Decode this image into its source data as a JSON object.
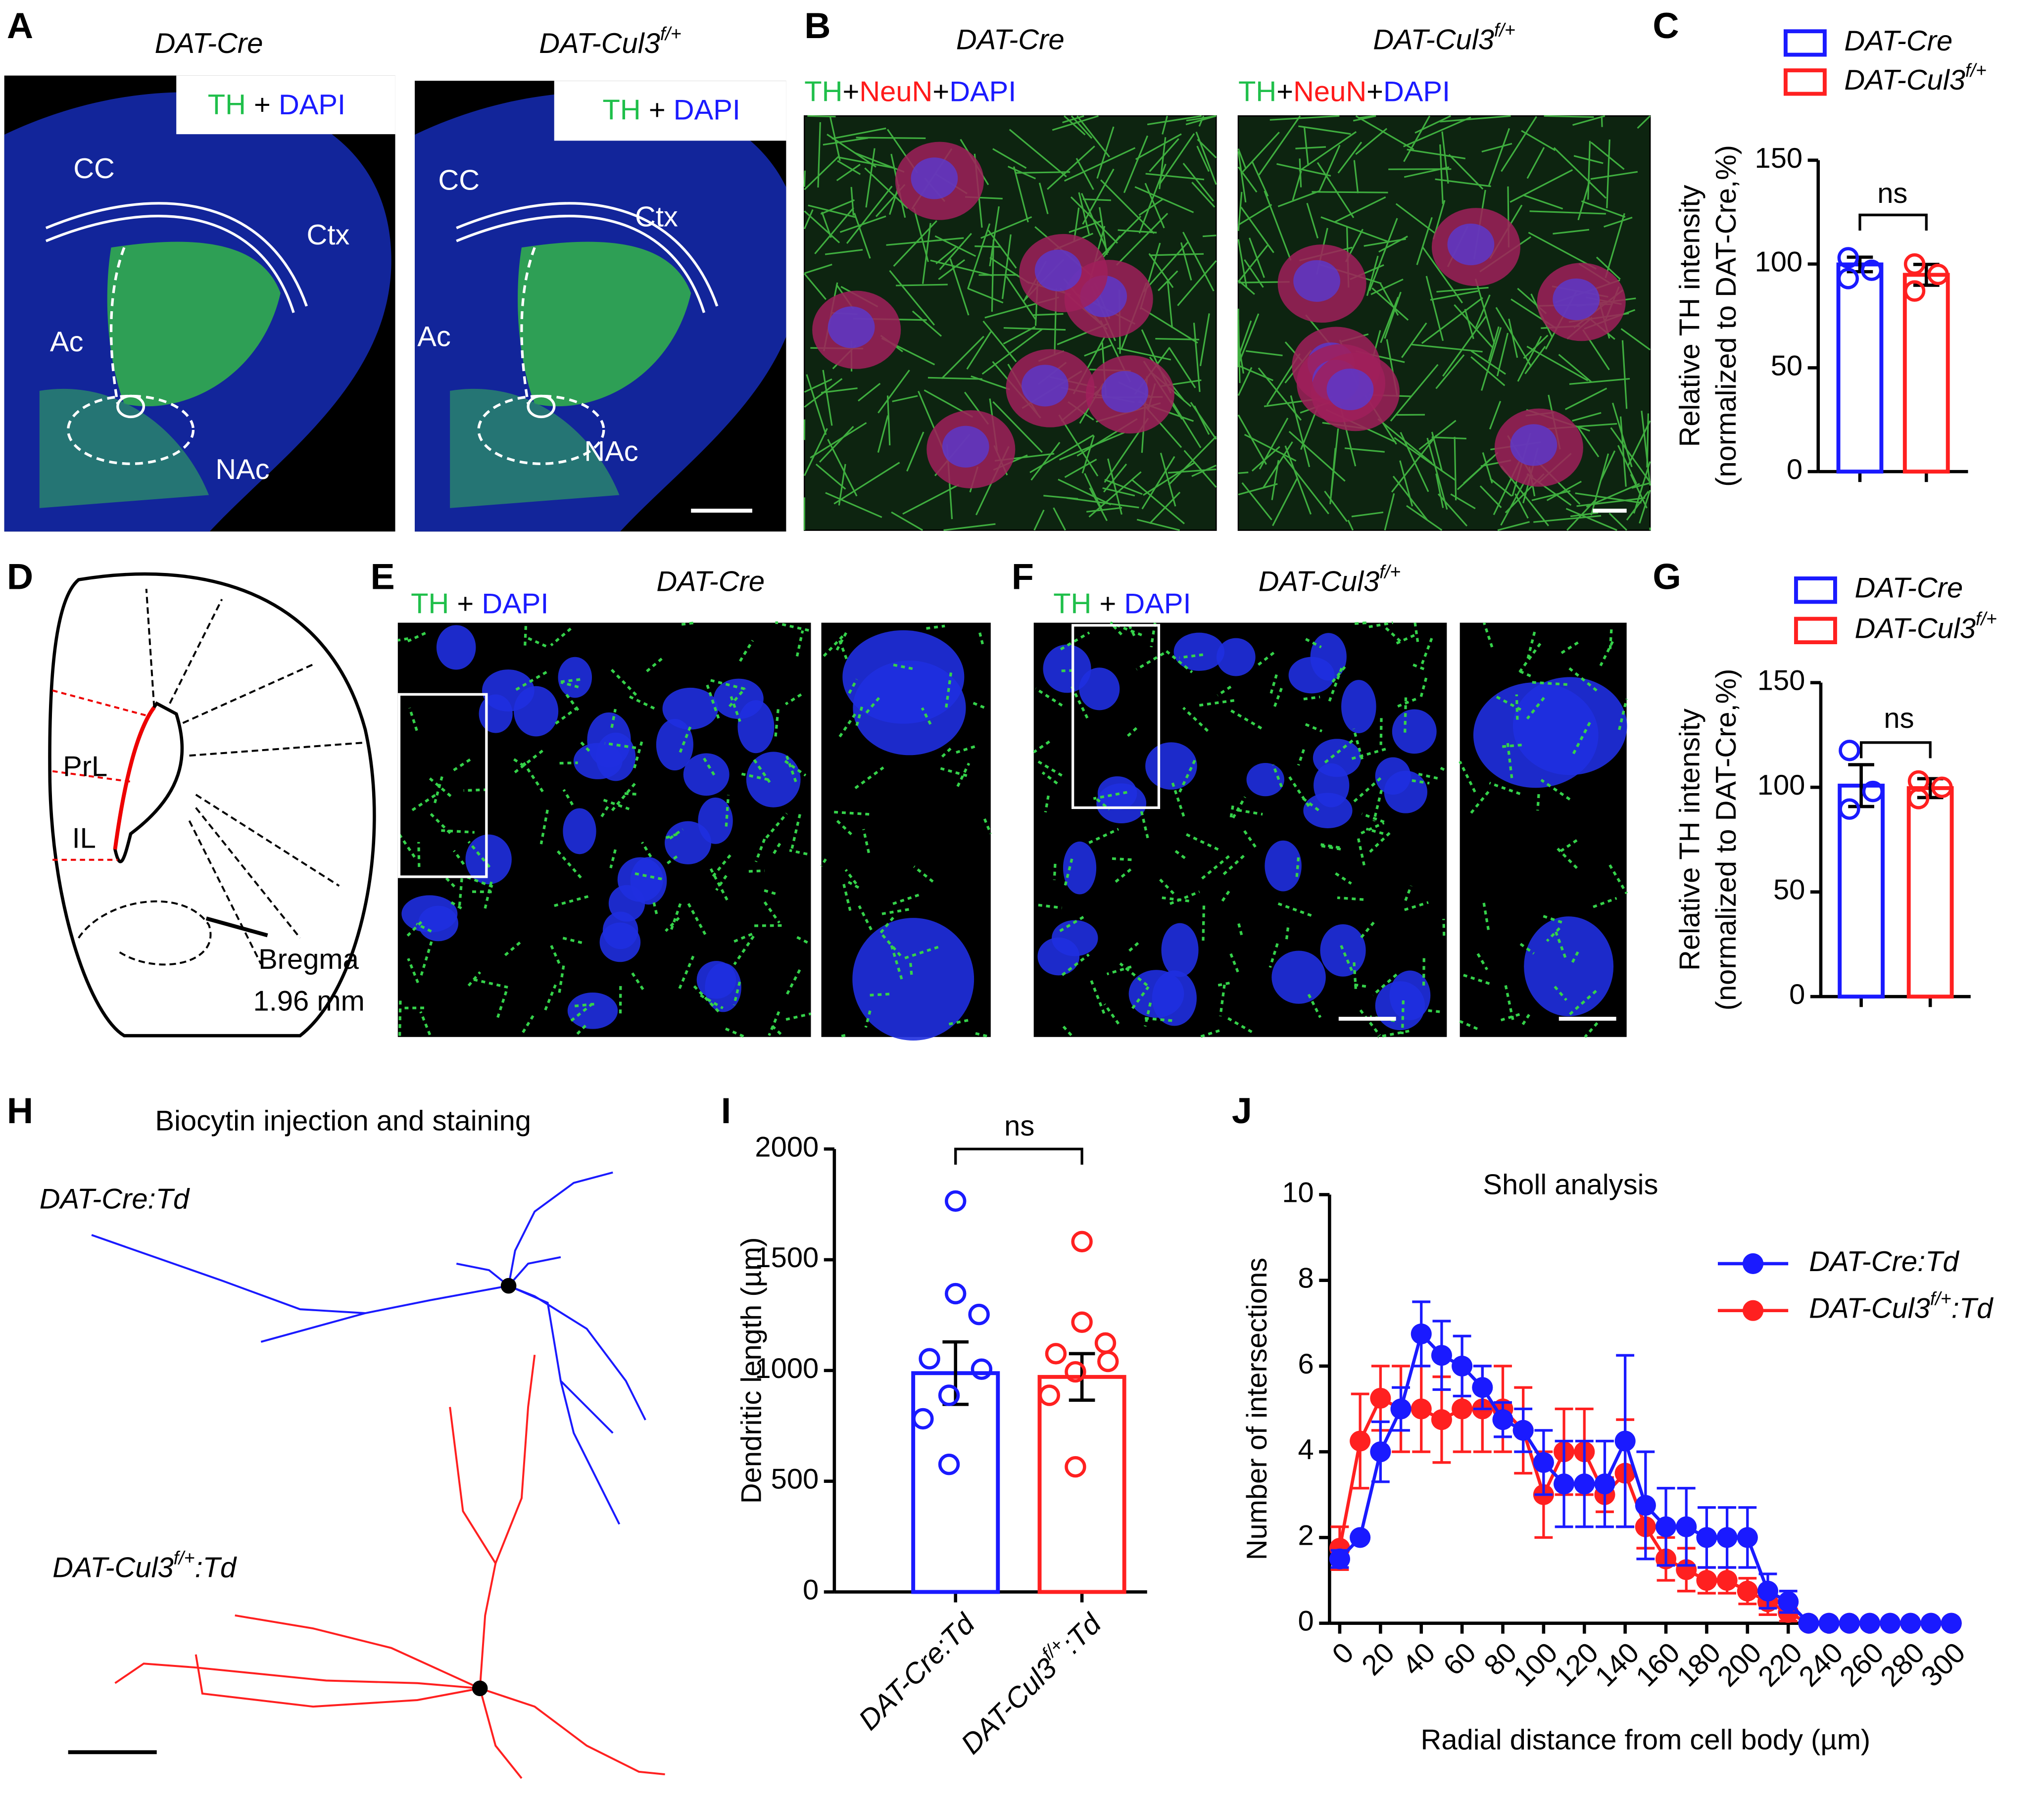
{
  "panel_labels": [
    "A",
    "B",
    "C",
    "D",
    "E",
    "F",
    "G",
    "H",
    "I",
    "J"
  ],
  "panel_a": {
    "groups": [
      "DAT-Cre",
      "DAT-Cul3f/+"
    ],
    "stain": [
      {
        "text": "TH",
        "color": "#1fbf4a"
      },
      {
        "text": " + ",
        "color": "#000000"
      },
      {
        "text": "DAPI",
        "color": "#1a1aff"
      }
    ],
    "regions": [
      "CC",
      "Ctx",
      "Ac",
      "NAc"
    ]
  },
  "panel_b": {
    "groups": [
      "DAT-Cre",
      "DAT-Cul3f/+"
    ],
    "stain": [
      {
        "text": "TH",
        "color": "#1fbf4a"
      },
      {
        "text": "+",
        "color": "#000000"
      },
      {
        "text": "NeuN",
        "color": "#ff1a1a"
      },
      {
        "text": "+",
        "color": "#000000"
      },
      {
        "text": "DAPI",
        "color": "#1a1aff"
      }
    ]
  },
  "panel_d": {
    "regions": [
      "PrL",
      "IL"
    ],
    "bregma": [
      "Bregma",
      "1.96 mm"
    ]
  },
  "panel_e": {
    "group": "DAT-Cre",
    "stain": [
      {
        "text": "TH",
        "color": "#1fbf4a"
      },
      {
        "text": " + ",
        "color": "#000000"
      },
      {
        "text": "DAPI",
        "color": "#1a1aff"
      }
    ]
  },
  "panel_f": {
    "group": "DAT-Cul3f/+",
    "stain": [
      {
        "text": "TH",
        "color": "#1fbf4a"
      },
      {
        "text": " + ",
        "color": "#000000"
      },
      {
        "text": "DAPI",
        "color": "#1a1aff"
      }
    ]
  },
  "panel_h": {
    "title": "Biocytin injection and staining",
    "groups": [
      "DAT-Cre:Td",
      "DAT-Cul3f/+:Td"
    ]
  },
  "chart_data": [
    {
      "type": "bar",
      "categories": [
        "DAT-Cre",
        "DAT-Cul3f/+"
      ],
      "colors": [
        "#1a1aff",
        "#ff2020"
      ],
      "values": [
        99.8,
        94.8
      ],
      "errors": [
        3.5,
        5
      ],
      "points": [
        [
          103,
          97,
          93
        ],
        [
          100,
          95,
          87
        ]
      ],
      "ylabel": [
        "Relative TH intensity",
        "(normalized to DAT-Cre,%)"
      ],
      "ylim": [
        0,
        150
      ],
      "yticks": [
        0,
        50,
        100,
        150
      ],
      "significance": "ns",
      "legend": "top"
    },
    {
      "type": "bar",
      "categories": [
        "DAT-Cre",
        "DAT-Cul3f/+"
      ],
      "colors": [
        "#1a1aff",
        "#ff2020"
      ],
      "values": [
        100.8,
        99.6
      ],
      "errors": [
        10,
        4.5
      ],
      "points": [
        [
          117.6,
          98,
          89.6
        ],
        [
          103,
          100,
          94.6
        ]
      ],
      "ylabel": [
        "Relative TH intensity",
        "(normalized to DAT-Cre,%)"
      ],
      "ylim": [
        0,
        150
      ],
      "yticks": [
        0,
        50,
        100,
        150
      ],
      "significance": "ns",
      "legend": "top"
    },
    {
      "type": "bar",
      "categories": [
        "DAT-Cre:Td",
        "DAT-Cul3f/+:Td"
      ],
      "colors": [
        "#1a1aff",
        "#ff2020"
      ],
      "values": [
        988,
        971
      ],
      "errors": [
        141,
        105
      ],
      "points": [
        [
          1765,
          1347,
          1253,
          1053,
          1006,
          888,
          782,
          576
        ],
        [
          1582,
          1218,
          1124,
          1076,
          1041,
          994,
          888,
          565
        ]
      ],
      "ylabel": [
        "Dendritic length (µm)"
      ],
      "ylim": [
        0,
        2000
      ],
      "yticks": [
        0,
        500,
        1000,
        1500,
        2000
      ],
      "significance": "ns",
      "legend": false
    },
    {
      "type": "line",
      "title": "Sholl analysis",
      "xlabel": "Radial distance from cell body (µm)",
      "ylabel": "Number of intersections",
      "x": [
        0,
        10,
        20,
        30,
        40,
        50,
        60,
        70,
        80,
        90,
        100,
        110,
        120,
        130,
        140,
        150,
        160,
        170,
        180,
        190,
        200,
        210,
        220,
        230,
        240,
        250,
        260,
        270,
        280,
        290,
        300
      ],
      "series": [
        {
          "name": "DAT-Cre:Td",
          "color": "#1a1aff",
          "values": [
            1.5,
            2,
            4,
            5,
            6.75,
            6.25,
            6,
            5.5,
            4.75,
            4.5,
            3.75,
            3.25,
            3.25,
            3.25,
            4.25,
            2.75,
            2.25,
            2.25,
            2,
            2,
            2,
            0.75,
            0.5,
            0,
            0,
            0,
            0,
            0,
            0,
            0,
            0
          ],
          "errors": [
            0.2,
            0,
            0.7,
            0.5,
            0.75,
            0.8,
            0.7,
            0.5,
            0.4,
            0.5,
            0.75,
            1,
            1,
            1,
            2,
            1.25,
            0.9,
            0.9,
            0.7,
            0.7,
            0.7,
            0.4,
            0.25,
            0,
            0,
            0,
            0,
            0,
            0,
            0,
            0
          ]
        },
        {
          "name": "DAT-Cul3f/+:Td",
          "color": "#ff2020",
          "values": [
            1.75,
            4.25,
            5.25,
            5,
            5,
            4.75,
            5,
            5,
            5,
            4.5,
            3,
            4,
            4,
            3,
            3.5,
            2.25,
            1.5,
            1.25,
            1,
            1,
            0.75,
            0.5,
            0.25,
            0,
            0,
            0,
            0,
            0,
            0,
            0,
            0
          ],
          "errors": [
            0.5,
            1.1,
            0.75,
            1,
            1,
            1,
            1,
            1,
            1,
            1,
            1,
            1,
            1,
            0.4,
            1.25,
            0.5,
            0.5,
            0.5,
            0.3,
            0.3,
            0.3,
            0.3,
            0.2,
            0,
            0,
            0,
            0,
            0,
            0,
            0,
            0
          ]
        }
      ],
      "xlim": [
        -5,
        305
      ],
      "xticks": [
        0,
        20,
        40,
        60,
        80,
        100,
        120,
        140,
        160,
        180,
        200,
        220,
        240,
        260,
        280,
        300
      ],
      "ylim": [
        0,
        10
      ],
      "yticks": [
        0,
        2,
        4,
        6,
        8,
        10
      ],
      "legend": "upper right"
    }
  ]
}
